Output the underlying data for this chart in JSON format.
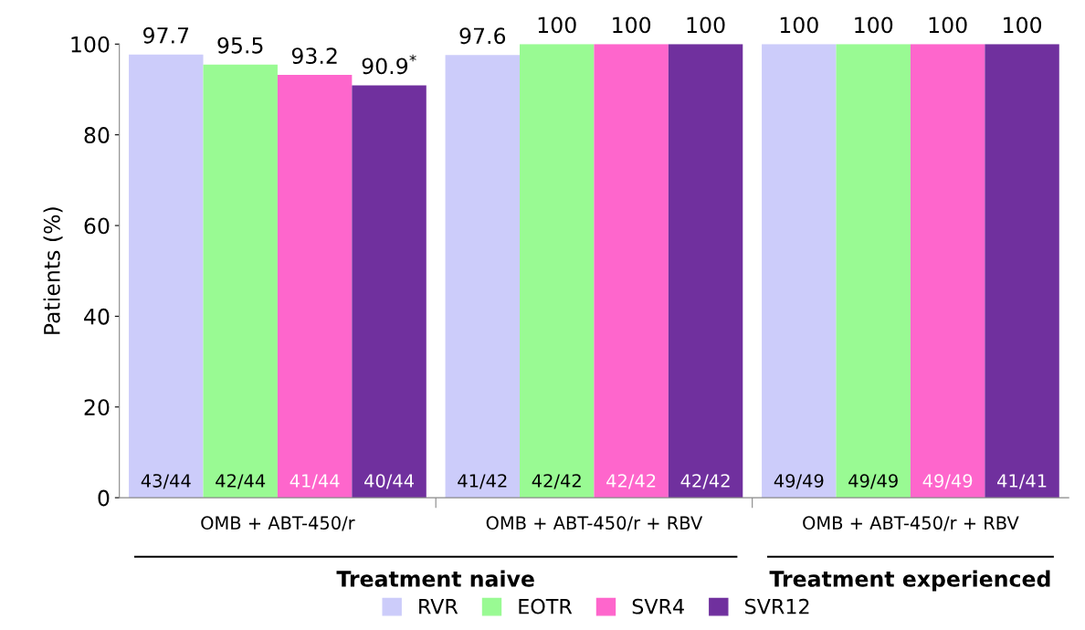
{
  "chart_data": {
    "type": "bar",
    "ylabel": "Patients (%)",
    "categories": [
      "OMB + ABT-450/r",
      "OMB + ABT-450/r + RBV",
      "OMB + ABT-450/r + RBV"
    ],
    "series": [
      {
        "name": "RVR",
        "color": "#ccccfa",
        "values": [
          97.7,
          97.6,
          100
        ],
        "value_labels": [
          "97.7",
          "97.6",
          "100"
        ]
      },
      {
        "name": "EOTR",
        "color": "#99fa93",
        "values": [
          95.5,
          100,
          100
        ],
        "value_labels": [
          "95.5",
          "100",
          "100"
        ]
      },
      {
        "name": "SVR4",
        "color": "#fe66cc",
        "values": [
          93.2,
          100,
          100
        ],
        "value_labels": [
          "93.2",
          "100",
          "100"
        ]
      },
      {
        "name": "SVR12",
        "color": "#70309e",
        "values": [
          90.9,
          100,
          100
        ],
        "value_labels": [
          "90.9$^{*}$",
          "100",
          "100"
        ]
      }
    ],
    "ylim": [
      0,
      100
    ],
    "yticks": [
      0,
      20,
      40,
      60,
      80,
      100
    ],
    "grid": false,
    "legend": "bottom",
    "annotations": [
      "43/44",
      "42/44",
      "41/44",
      "40/44",
      "41/42",
      "42/42",
      "42/42",
      "42/42",
      "49/49",
      "49/49",
      "49/49",
      "41/41",
      "Treatment naive",
      "Treatment experienced"
    ]
  }
}
